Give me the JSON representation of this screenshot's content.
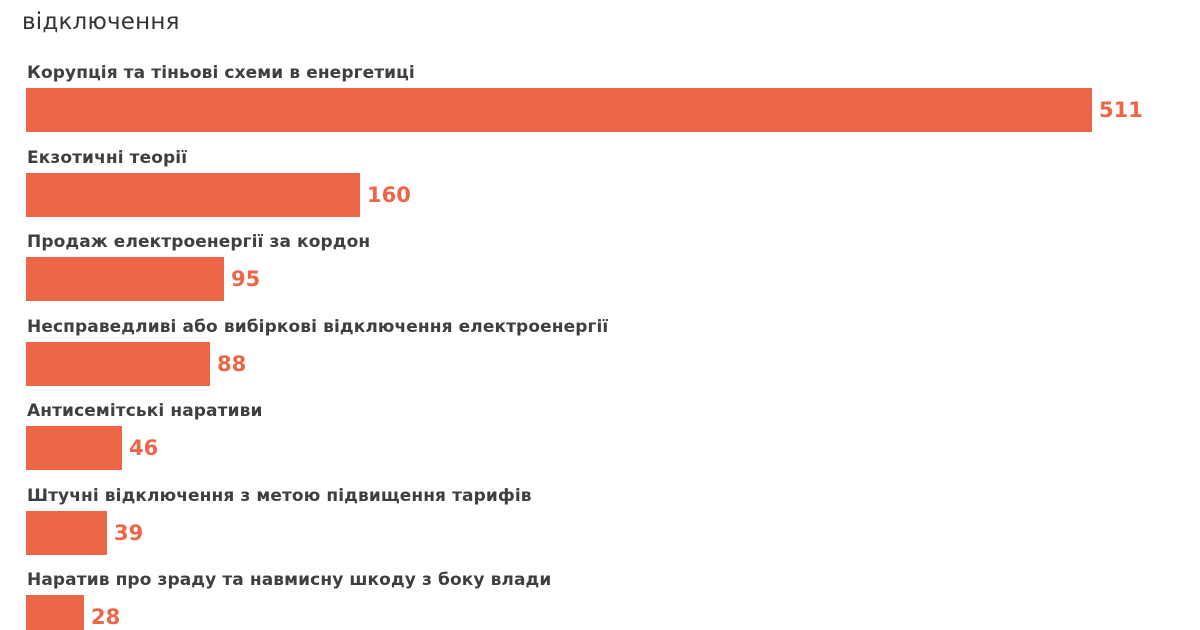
{
  "header": {
    "title_line_cut": "",
    "title_continuation": "відключення"
  },
  "colors": {
    "bar": "#ed6648",
    "value_text": "#ed6648",
    "label_text": "#3f3f3f"
  },
  "chart_data": {
    "type": "bar",
    "orientation": "horizontal",
    "title": "… відключення",
    "xlabel": "",
    "ylabel": "",
    "grid": false,
    "legend": null,
    "xlim": [
      0,
      511
    ],
    "categories": [
      "Корупція та тіньові схеми в енергетиці",
      "Екзотичні теорії",
      "Продаж електроенергії за кордон",
      "Несправедливі або вибіркові відключення електроенергії",
      "Антисемітські наративи",
      "Штучні відключення з метою підвищення тарифів",
      "Наратив про зраду та навмисну шкоду з боку влади"
    ],
    "values": [
      511,
      160,
      95,
      88,
      46,
      39,
      28
    ],
    "value_labels": [
      "511",
      "160",
      "95",
      "88",
      "46",
      "39",
      "28"
    ]
  }
}
